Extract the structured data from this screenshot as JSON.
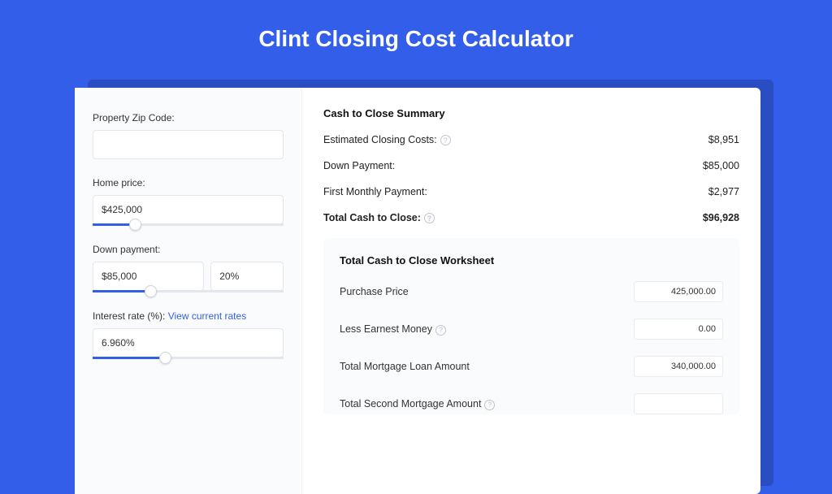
{
  "colors": {
    "accent": "#335eea",
    "background": "#335eea",
    "card": "#ffffff",
    "sidebar": "#fafbfd",
    "border": "#e3e6ec"
  },
  "title": "Clint Closing Cost Calculator",
  "sidebar": {
    "zip": {
      "label": "Property Zip Code:",
      "value": ""
    },
    "homePrice": {
      "label": "Home price:",
      "value": "$425,000",
      "sliderPercent": 22
    },
    "downPayment": {
      "label": "Down payment:",
      "value": "$85,000",
      "percent": "20%",
      "sliderPercent": 30
    },
    "interest": {
      "label": "Interest rate (%): ",
      "linkText": "View current rates",
      "value": "6.960%",
      "sliderPercent": 38
    }
  },
  "summary": {
    "title": "Cash to Close Summary",
    "rows": [
      {
        "label": "Estimated Closing Costs:",
        "help": true,
        "value": "$8,951",
        "bold": false
      },
      {
        "label": "Down Payment:",
        "help": false,
        "value": "$85,000",
        "bold": false
      },
      {
        "label": "First Monthly Payment:",
        "help": false,
        "value": "$2,977",
        "bold": false
      },
      {
        "label": "Total Cash to Close:",
        "help": true,
        "value": "$96,928",
        "bold": true
      }
    ]
  },
  "worksheet": {
    "title": "Total Cash to Close Worksheet",
    "rows": [
      {
        "label": "Purchase Price",
        "help": false,
        "value": "425,000.00"
      },
      {
        "label": "Less Earnest Money",
        "help": true,
        "value": "0.00"
      },
      {
        "label": "Total Mortgage Loan Amount",
        "help": false,
        "value": "340,000.00"
      },
      {
        "label": "Total Second Mortgage Amount",
        "help": true,
        "value": ""
      }
    ]
  }
}
